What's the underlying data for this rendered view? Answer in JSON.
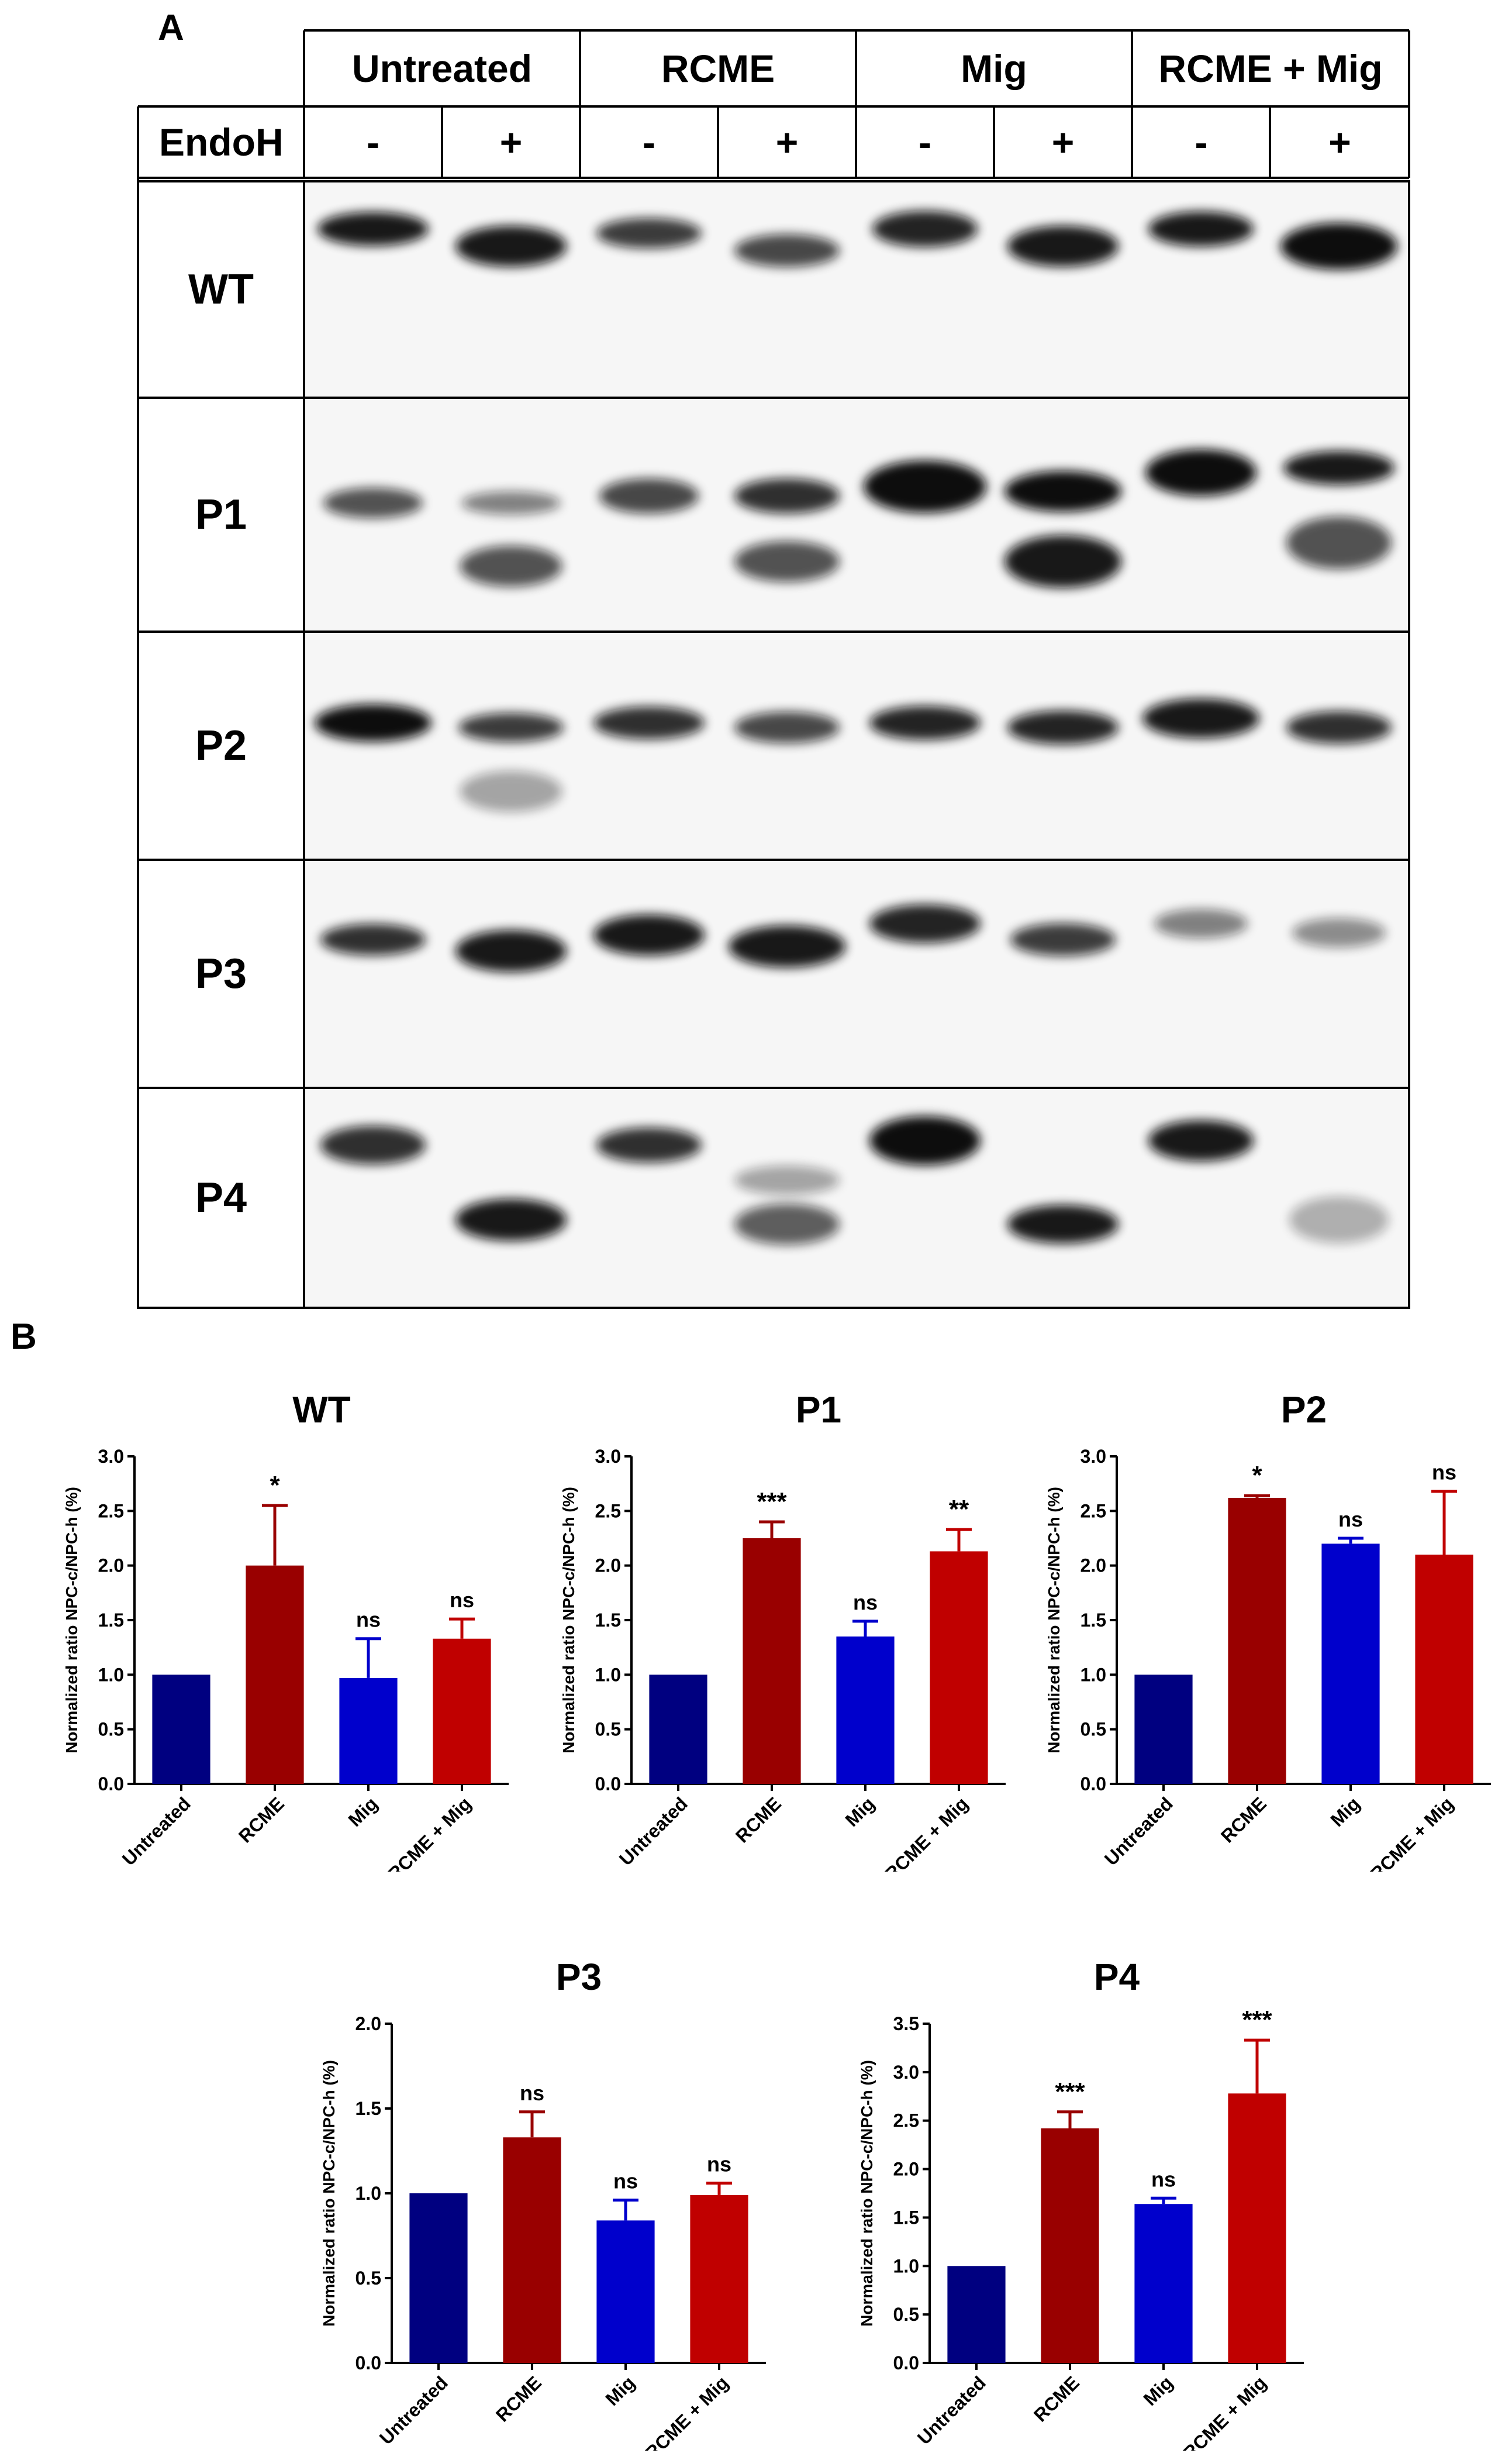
{
  "figure": {
    "panel_a_label": "A",
    "panel_b_label": "B"
  },
  "blot": {
    "groups": [
      "Untreated",
      "RCME",
      "Mig",
      "RCME + Mig"
    ],
    "endoh_label": "EndoH",
    "lanes": [
      "-",
      "+",
      "-",
      "+",
      "-",
      "+",
      "-",
      "+"
    ],
    "rows": [
      "WT",
      "P1",
      "P2",
      "P3",
      "P4"
    ]
  },
  "colors": {
    "Untreated": "#000080",
    "RCME": "#990000",
    "Mig": "#0000cc",
    "RCME + Mig": "#c00000"
  },
  "chart_data": [
    {
      "type": "bar",
      "title": "WT",
      "ylabel": "Normalized ratio NPC-c/NPC-h (%)",
      "categories": [
        "Untreated",
        "RCME",
        "Mig",
        "RCME + Mig"
      ],
      "values": [
        1.0,
        2.0,
        0.97,
        1.33
      ],
      "errors": [
        0,
        0.55,
        0.36,
        0.18
      ],
      "significance": [
        "",
        "*",
        "ns",
        "ns"
      ],
      "ylim": [
        0,
        3.0
      ],
      "yticks": [
        "0.0",
        "0.5",
        "1.0",
        "1.5",
        "2.0",
        "2.5",
        "3.0"
      ]
    },
    {
      "type": "bar",
      "title": "P1",
      "ylabel": "Normalized ratio NPC-c/NPC-h (%)",
      "categories": [
        "Untreated",
        "RCME",
        "Mig",
        "RCME + Mig"
      ],
      "values": [
        1.0,
        2.25,
        1.35,
        2.13
      ],
      "errors": [
        0,
        0.15,
        0.14,
        0.2
      ],
      "significance": [
        "",
        "***",
        "ns",
        "**"
      ],
      "ylim": [
        0,
        3.0
      ],
      "yticks": [
        "0.0",
        "0.5",
        "1.0",
        "1.5",
        "2.0",
        "2.5",
        "3.0"
      ]
    },
    {
      "type": "bar",
      "title": "P2",
      "ylabel": "Normalized ratio NPC-c/NPC-h (%)",
      "categories": [
        "Untreated",
        "RCME",
        "Mig",
        "RCME + Mig"
      ],
      "values": [
        1.0,
        2.62,
        2.2,
        2.1
      ],
      "errors": [
        0,
        0.02,
        0.05,
        0.58
      ],
      "significance": [
        "",
        "*",
        "ns",
        "ns"
      ],
      "ylim": [
        0,
        3.0
      ],
      "yticks": [
        "0.0",
        "0.5",
        "1.0",
        "1.5",
        "2.0",
        "2.5",
        "3.0"
      ]
    },
    {
      "type": "bar",
      "title": "P3",
      "ylabel": "Normalized ratio NPC-c/NPC-h (%)",
      "categories": [
        "Untreated",
        "RCME",
        "Mig",
        "RCME + Mig"
      ],
      "values": [
        1.0,
        1.33,
        0.84,
        0.99
      ],
      "errors": [
        0,
        0.15,
        0.12,
        0.07
      ],
      "significance": [
        "",
        "ns",
        "ns",
        "ns"
      ],
      "ylim": [
        0,
        2.0
      ],
      "yticks": [
        "0.0",
        "0.5",
        "1.0",
        "1.5",
        "2.0"
      ]
    },
    {
      "type": "bar",
      "title": "P4",
      "ylabel": "Normalized ratio NPC-c/NPC-h (%)",
      "categories": [
        "Untreated",
        "RCME",
        "Mig",
        "RCME + Mig"
      ],
      "values": [
        1.0,
        2.42,
        1.64,
        2.78
      ],
      "errors": [
        0,
        0.17,
        0.06,
        0.55
      ],
      "significance": [
        "",
        "***",
        "ns",
        "***"
      ],
      "ylim": [
        0,
        3.5
      ],
      "yticks": [
        "0.0",
        "0.5",
        "1.0",
        "1.5",
        "2.0",
        "2.5",
        "3.0",
        "3.5"
      ]
    }
  ]
}
